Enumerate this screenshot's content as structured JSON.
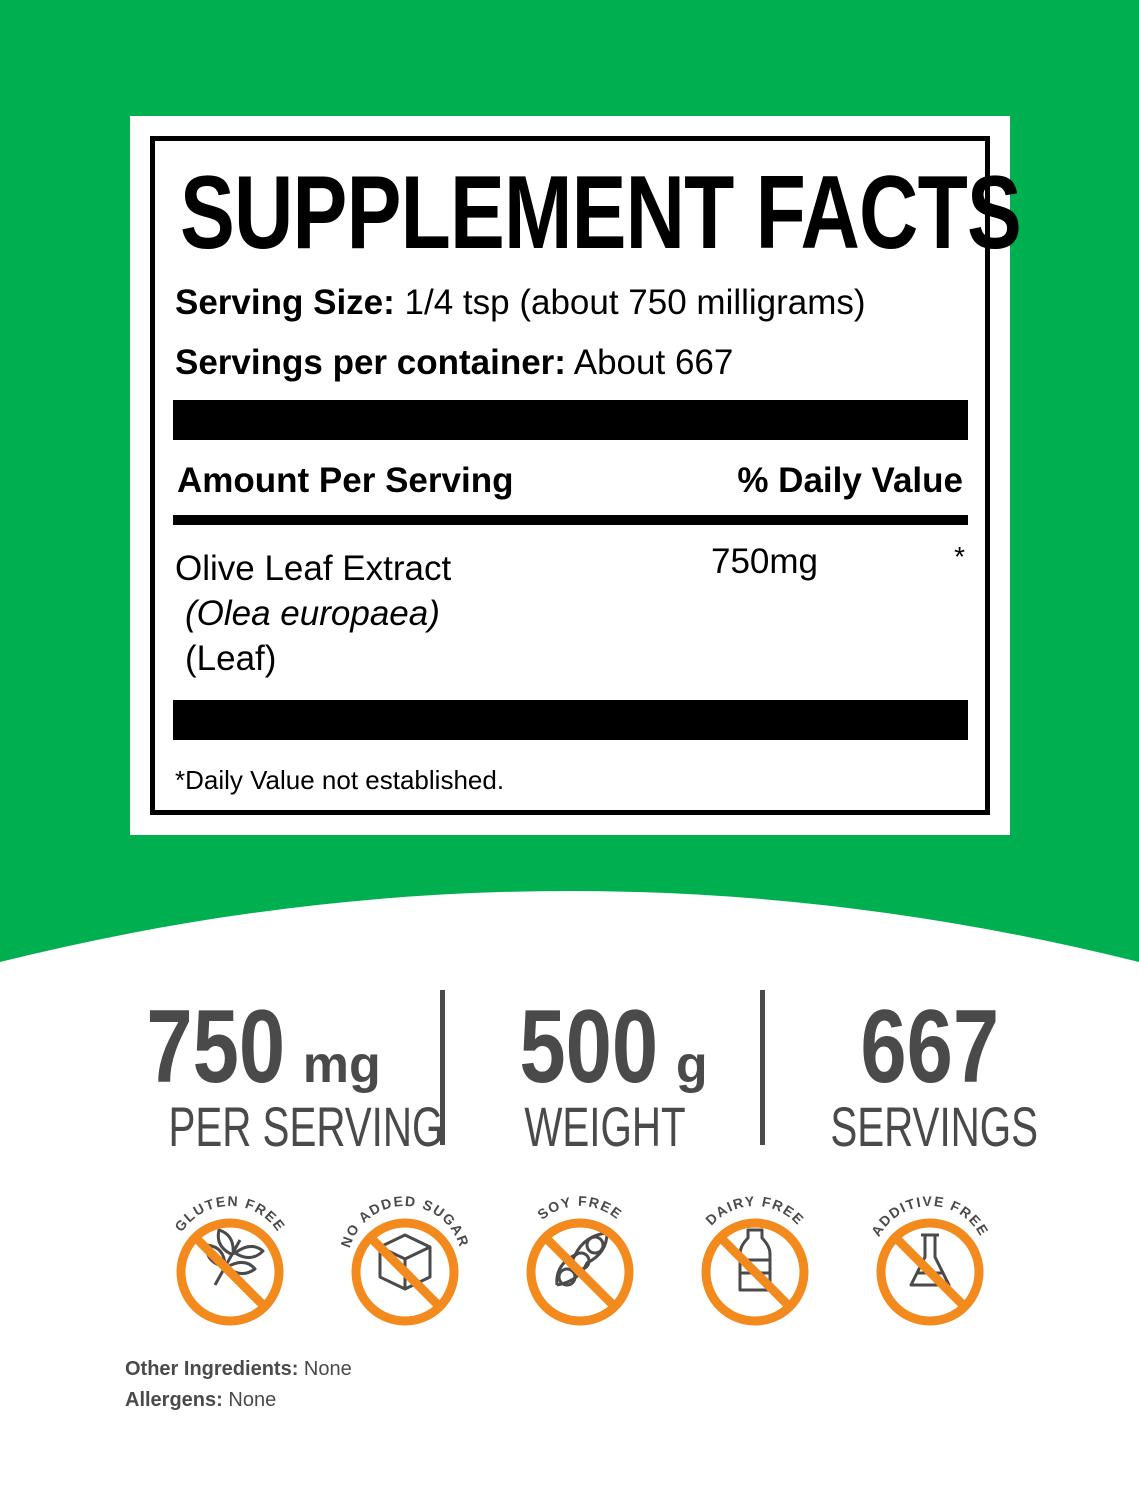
{
  "colors": {
    "green": "#00b050",
    "orange": "#f28a1e",
    "gray": "#4a4a4a"
  },
  "label": {
    "title": "SUPPLEMENT FACTS",
    "serving_size_label": "Serving Size:",
    "serving_size_value": "1/4 tsp (about 750 milligrams)",
    "servings_label": "Servings per container:",
    "servings_value": "About 667",
    "amount_header": "Amount Per Serving",
    "dv_header": "% Daily Value",
    "ingredient": {
      "name": "Olive Leaf Extract",
      "latin": "(Olea europaea)",
      "part": "(Leaf)",
      "amount": "750mg",
      "dv": "*"
    },
    "footnote": "*Daily Value not established."
  },
  "stats": [
    {
      "value": "750",
      "unit": "mg",
      "label": "PER SERVING"
    },
    {
      "value": "500",
      "unit": "g",
      "label": "WEIGHT"
    },
    {
      "value": "667",
      "unit": "",
      "label": "SERVINGS"
    }
  ],
  "badges": [
    {
      "text": "GLUTEN FREE",
      "icon": "wheat-icon"
    },
    {
      "text": "NO ADDED SUGAR",
      "icon": "sugar-cube-icon"
    },
    {
      "text": "SOY FREE",
      "icon": "soybean-icon"
    },
    {
      "text": "DAIRY FREE",
      "icon": "milk-bottle-icon"
    },
    {
      "text": "ADDITIVE FREE",
      "icon": "flask-icon"
    }
  ],
  "footer": {
    "other_label": "Other Ingredients:",
    "other_value": "None",
    "allergens_label": "Allergens:",
    "allergens_value": "None"
  }
}
